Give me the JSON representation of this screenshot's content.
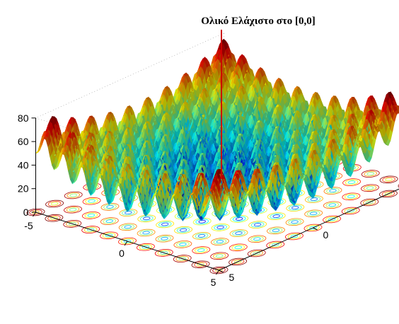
{
  "chart_data": {
    "type": "surface",
    "function": "Rastrigin",
    "z_formula": "20 + x^2 + y^2 - 10*(cos(2*pi*x) + cos(2*pi*y))",
    "x_range": [
      -5,
      5
    ],
    "y_range": [
      -5,
      5
    ],
    "zlim": [
      0,
      80
    ],
    "x_ticks": [
      "-5",
      "0",
      "5"
    ],
    "y_ticks": [
      "-5",
      "0",
      "5"
    ],
    "z_ticks": [
      "0",
      "20",
      "40",
      "60",
      "80"
    ],
    "colormap": "jet",
    "contour_projection": true,
    "grid": true,
    "global_minimum": {
      "x": 0,
      "y": 0,
      "z": 0
    },
    "annotation": {
      "text": "Ολικό Ελάχιστο στο [0,0]",
      "line_color": "#cc0000"
    },
    "title": "",
    "xlabel": "",
    "ylabel": "",
    "zlabel": ""
  }
}
